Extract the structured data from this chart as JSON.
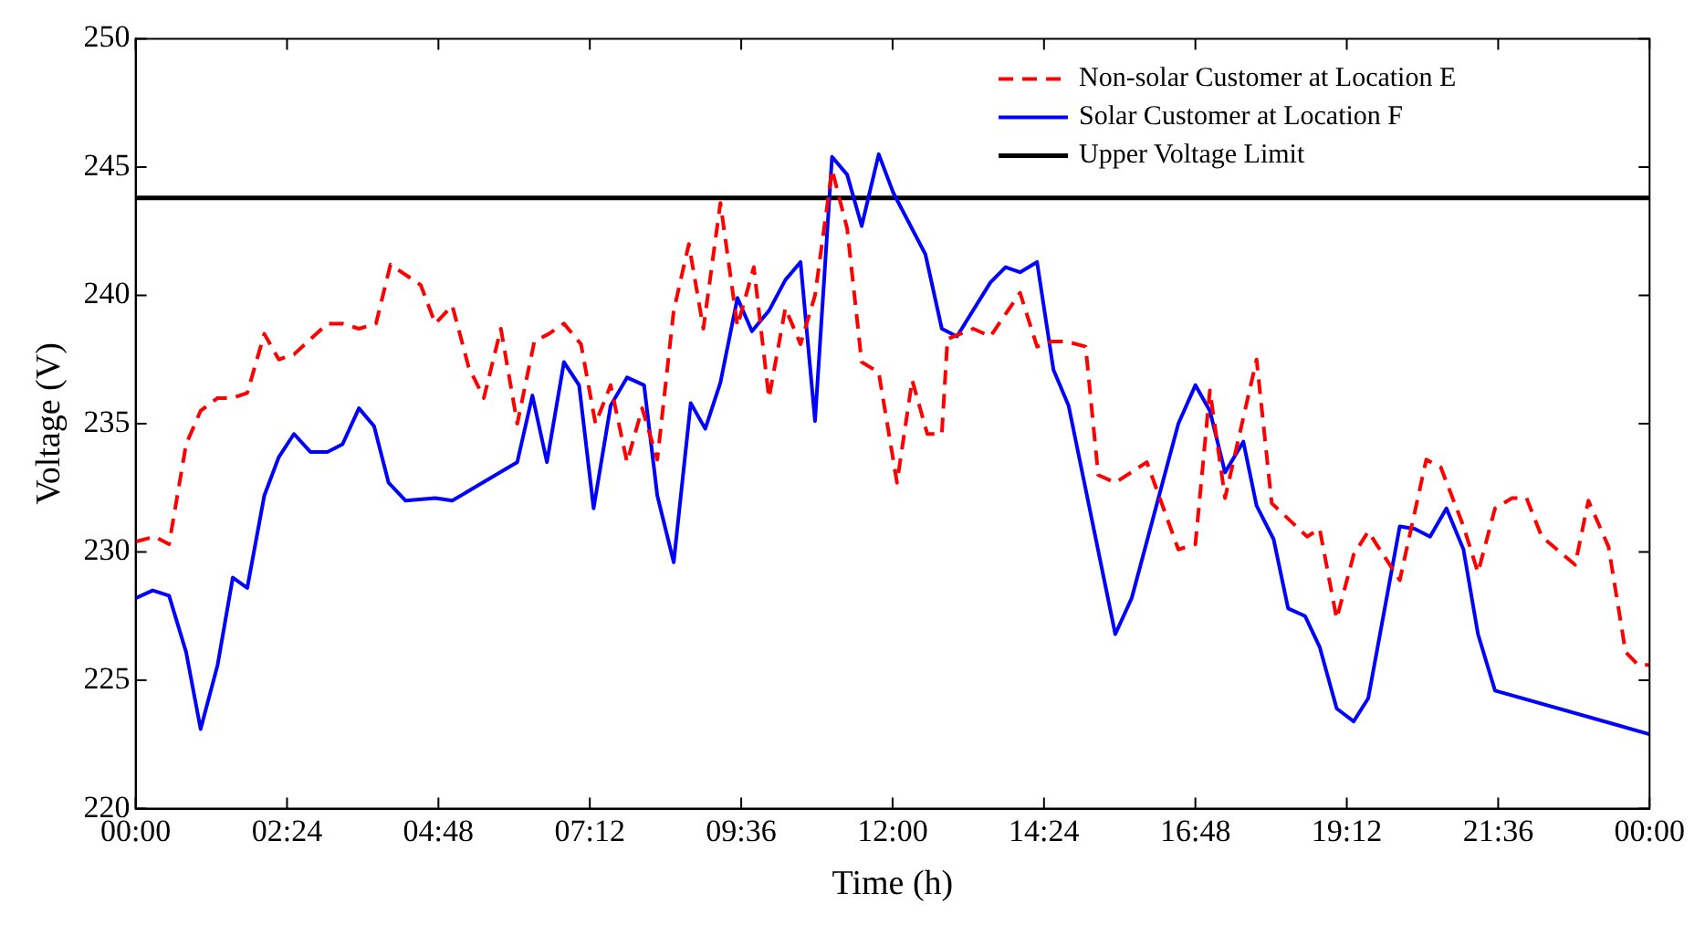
{
  "chart_data": {
    "type": "line",
    "xlabel": "Time (h)",
    "ylabel": "Voltage (V)",
    "xlim": [
      0,
      24
    ],
    "xticks": [
      {
        "value": 0,
        "label": "00:00"
      },
      {
        "value": 2.4,
        "label": "02:24"
      },
      {
        "value": 4.8,
        "label": "04:48"
      },
      {
        "value": 7.2,
        "label": "07:12"
      },
      {
        "value": 9.6,
        "label": "09:36"
      },
      {
        "value": 12,
        "label": "12:00"
      },
      {
        "value": 14.4,
        "label": "14:24"
      },
      {
        "value": 16.8,
        "label": "16:48"
      },
      {
        "value": 19.2,
        "label": "19:12"
      },
      {
        "value": 21.6,
        "label": "21:36"
      },
      {
        "value": 24,
        "label": "00:00"
      }
    ],
    "ylim": [
      220,
      250
    ],
    "yticks": [
      220,
      225,
      230,
      235,
      240,
      245,
      250
    ],
    "grid": false,
    "legend": "top right",
    "marker": "none",
    "series": [
      {
        "name": "Non-solar Customer at Location E",
        "color": "#ff0000",
        "line_style": "dashed",
        "x": [
          0,
          0.3,
          0.53,
          0.8,
          1.03,
          1.3,
          1.54,
          1.77,
          2.04,
          2.27,
          2.51,
          3.04,
          3.28,
          3.54,
          3.81,
          4.04,
          4.52,
          4.75,
          5.02,
          5.28,
          5.52,
          5.79,
          6.05,
          6.32,
          6.55,
          6.79,
          7.06,
          7.29,
          7.53,
          7.79,
          8.03,
          8.27,
          8.53,
          8.77,
          9.0,
          9.27,
          9.54,
          9.8,
          10.04,
          10.3,
          10.54,
          10.77,
          11.04,
          11.28,
          11.51,
          11.78,
          12.07,
          12.31,
          12.55,
          12.78,
          12.87,
          13.28,
          13.55,
          14.02,
          14.29,
          14.52,
          14.76,
          15.06,
          15.26,
          15.53,
          16.03,
          16.53,
          16.8,
          17.03,
          17.27,
          17.77,
          18.01,
          18.57,
          18.77,
          19.04,
          19.31,
          19.54,
          20.04,
          20.46,
          20.69,
          21.05,
          21.28,
          21.55,
          21.82,
          22.05,
          22.29,
          22.82,
          23.03,
          23.35,
          23.62,
          23.82,
          24
        ],
        "values": [
          230.4,
          230.6,
          230.3,
          234.2,
          235.5,
          236.0,
          236.0,
          236.2,
          238.5,
          237.5,
          237.7,
          238.9,
          238.9,
          238.7,
          238.9,
          241.2,
          240.4,
          238.9,
          239.6,
          237.2,
          236.0,
          238.7,
          235.0,
          238.2,
          238.5,
          238.9,
          238.1,
          235.0,
          236.5,
          233.5,
          235.6,
          233.6,
          239.4,
          242.0,
          238.7,
          243.6,
          238.8,
          241.1,
          236.0,
          239.5,
          238.1,
          240.0,
          244.9,
          242.6,
          237.4,
          237.0,
          232.7,
          236.7,
          234.6,
          234.6,
          238.3,
          238.7,
          238.4,
          240.1,
          238.0,
          238.2,
          238.2,
          238.0,
          233.0,
          232.7,
          233.5,
          230.1,
          230.3,
          236.3,
          232.1,
          237.5,
          231.9,
          230.6,
          230.9,
          227.4,
          229.9,
          230.8,
          228.9,
          233.6,
          233.3,
          231.0,
          229.2,
          231.7,
          232.1,
          232.1,
          230.6,
          229.5,
          232.0,
          230.2,
          226.1,
          225.6,
          225.6
        ]
      },
      {
        "name": "Solar Customer at Location F",
        "color": "#0000ff",
        "line_style": "solid",
        "x": [
          0,
          0.27,
          0.53,
          0.8,
          1.03,
          1.3,
          1.54,
          1.77,
          2.04,
          2.27,
          2.51,
          2.77,
          3.04,
          3.28,
          3.54,
          3.78,
          4.01,
          4.28,
          4.75,
          5.02,
          6.05,
          6.29,
          6.52,
          6.79,
          7.03,
          7.26,
          7.53,
          7.79,
          8.06,
          8.27,
          8.53,
          8.8,
          9.03,
          9.27,
          9.54,
          9.77,
          10.04,
          10.3,
          10.54,
          10.77,
          11.04,
          11.28,
          11.51,
          11.78,
          12.01,
          12.52,
          12.78,
          13.02,
          13.55,
          13.79,
          14.02,
          14.29,
          14.55,
          14.79,
          15.53,
          15.79,
          16.53,
          16.8,
          17.03,
          17.27,
          17.56,
          17.77,
          18.04,
          18.27,
          18.54,
          18.77,
          19.04,
          19.31,
          19.54,
          20.04,
          20.28,
          20.52,
          20.78,
          21.05,
          21.28,
          21.55,
          24
        ],
        "values": [
          228.2,
          228.5,
          228.3,
          226.1,
          223.1,
          225.6,
          229.0,
          228.6,
          232.2,
          233.7,
          234.6,
          233.9,
          233.9,
          234.2,
          235.6,
          234.9,
          232.7,
          232.0,
          232.1,
          232.0,
          233.5,
          236.1,
          233.5,
          237.4,
          236.5,
          231.7,
          235.7,
          236.8,
          236.5,
          232.2,
          229.6,
          235.8,
          234.8,
          236.6,
          239.9,
          238.6,
          239.4,
          240.6,
          241.3,
          235.1,
          245.4,
          244.7,
          242.7,
          245.5,
          244.0,
          241.6,
          238.7,
          238.4,
          240.5,
          241.1,
          240.9,
          241.3,
          237.1,
          235.7,
          226.8,
          228.2,
          235.0,
          236.5,
          235.5,
          233.1,
          234.3,
          231.8,
          230.5,
          227.8,
          227.5,
          226.3,
          223.9,
          223.4,
          224.3,
          231.0,
          230.9,
          230.6,
          231.7,
          230.1,
          226.8,
          224.6,
          222.9
        ]
      }
    ],
    "ref_lines": [
      {
        "axis": "y",
        "value": 243.8,
        "label": "Upper Voltage Limit",
        "color": "#000000",
        "line_style": "solid"
      }
    ]
  }
}
